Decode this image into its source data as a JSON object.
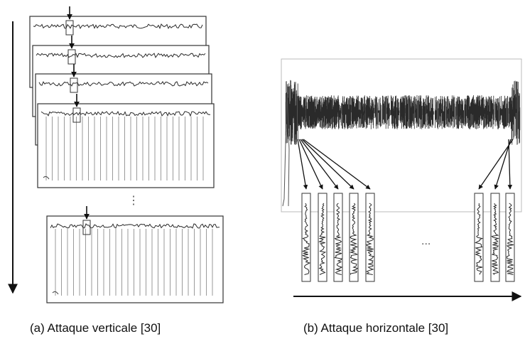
{
  "panels": [
    {
      "caption": "(a)  Attaque verticale [30]",
      "trace_count_visible": 5
    },
    {
      "caption": "(b)  Attaque horizontale [30]",
      "window_count_left": 5,
      "window_count_right": 3
    }
  ],
  "ellipsis_vertical": "⋮",
  "ellipsis_horizontal": "...",
  "colors": {
    "signal": "#2a2a2a",
    "spikes": "#9a9a9a",
    "frame": "#333333",
    "arrow": "#111111"
  }
}
